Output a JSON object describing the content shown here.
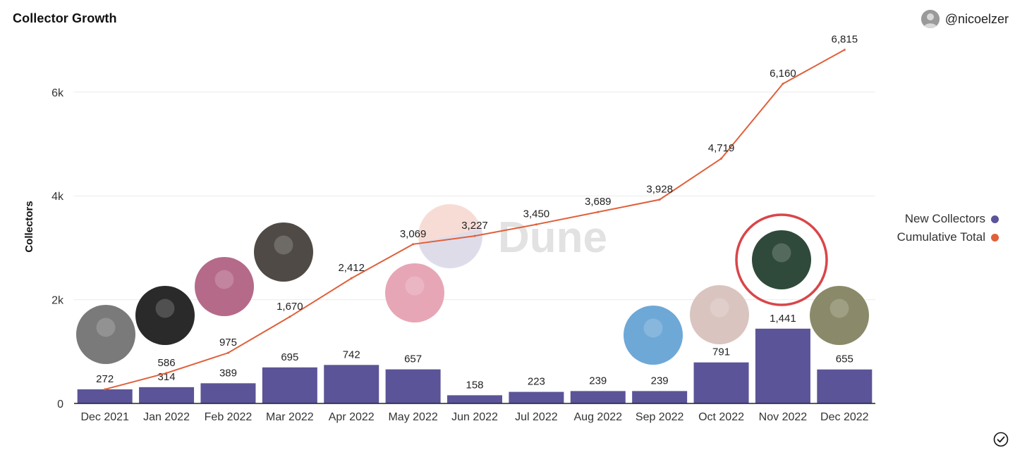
{
  "header": {
    "title": "Collector Growth",
    "username": "@nicoelzer"
  },
  "icons": {
    "avatar": "user-avatar-icon",
    "verified": "check-circle-icon"
  },
  "watermark": "Dune",
  "legend": {
    "items": [
      {
        "label": "New Collectors",
        "color": "#5b5498"
      },
      {
        "label": "Cumulative Total",
        "color": "#e0603a"
      }
    ]
  },
  "chart_data": {
    "type": "bar",
    "title": "Collector Growth",
    "xlabel": "",
    "ylabel": "Collectors",
    "ylim": [
      0,
      6000
    ],
    "yticks": [
      "0",
      "2k",
      "4k",
      "6k"
    ],
    "grid": true,
    "legend_position": "right",
    "categories": [
      "Dec 2021",
      "Jan 2022",
      "Feb 2022",
      "Mar 2022",
      "Apr 2022",
      "May 2022",
      "Jun 2022",
      "Jul 2022",
      "Aug 2022",
      "Sep 2022",
      "Oct 2022",
      "Nov 2022",
      "Dec 2022"
    ],
    "series": [
      {
        "name": "New Collectors",
        "kind": "bar",
        "color": "#5b5498",
        "values": [
          272,
          314,
          389,
          695,
          742,
          657,
          158,
          223,
          239,
          239,
          791,
          1441,
          655
        ],
        "labels": [
          "272",
          "314",
          "389",
          "695",
          "742",
          "657",
          "158",
          "223",
          "239",
          "239",
          "791",
          "1,441",
          "655"
        ]
      },
      {
        "name": "Cumulative Total",
        "kind": "line",
        "color": "#e0603a",
        "values": [
          272,
          586,
          975,
          1670,
          2412,
          3069,
          3227,
          3450,
          3689,
          3928,
          4719,
          6160,
          6815
        ],
        "labels": [
          "272",
          "586",
          "975",
          "1,670",
          "2,412",
          "3,069",
          "3,227",
          "3,450",
          "3,689",
          "3,928",
          "4,719",
          "6,160",
          "6,815"
        ]
      }
    ]
  }
}
